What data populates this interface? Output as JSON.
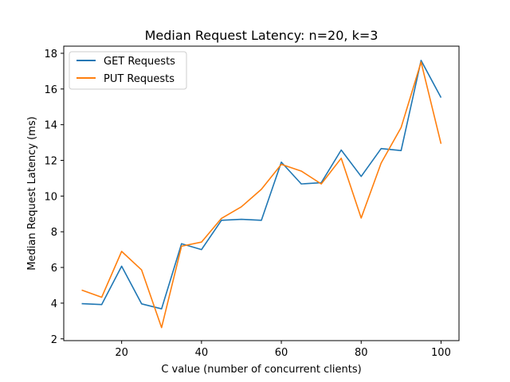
{
  "chart_data": {
    "type": "line",
    "title": "Median Request Latency: n=20, k=3",
    "xlabel": "C value (number of concurrent clients)",
    "ylabel": "Median Request Latency (ms)",
    "xlim": [
      5.5,
      104.5
    ],
    "ylim": [
      1.9,
      18.4
    ],
    "xticks": [
      20,
      40,
      60,
      80,
      100
    ],
    "yticks": [
      2,
      4,
      6,
      8,
      10,
      12,
      14,
      16,
      18
    ],
    "grid": false,
    "legend_position": "top-left",
    "x": [
      10,
      15,
      20,
      25,
      30,
      35,
      40,
      45,
      50,
      55,
      60,
      65,
      70,
      75,
      80,
      85,
      90,
      95,
      100
    ],
    "series": [
      {
        "name": "GET Requests",
        "color": "#1f77b4",
        "values": [
          3.97,
          3.92,
          6.07,
          3.96,
          3.68,
          7.33,
          7.0,
          8.64,
          8.7,
          8.64,
          11.9,
          10.68,
          10.75,
          12.58,
          11.1,
          12.66,
          12.55,
          17.6,
          15.52
        ]
      },
      {
        "name": "PUT Requests",
        "color": "#ff7f0e",
        "values": [
          4.73,
          4.33,
          6.9,
          5.86,
          2.63,
          7.19,
          7.42,
          8.75,
          9.4,
          10.38,
          11.78,
          11.4,
          10.68,
          12.12,
          8.77,
          11.85,
          13.84,
          17.51,
          12.93
        ]
      }
    ]
  }
}
